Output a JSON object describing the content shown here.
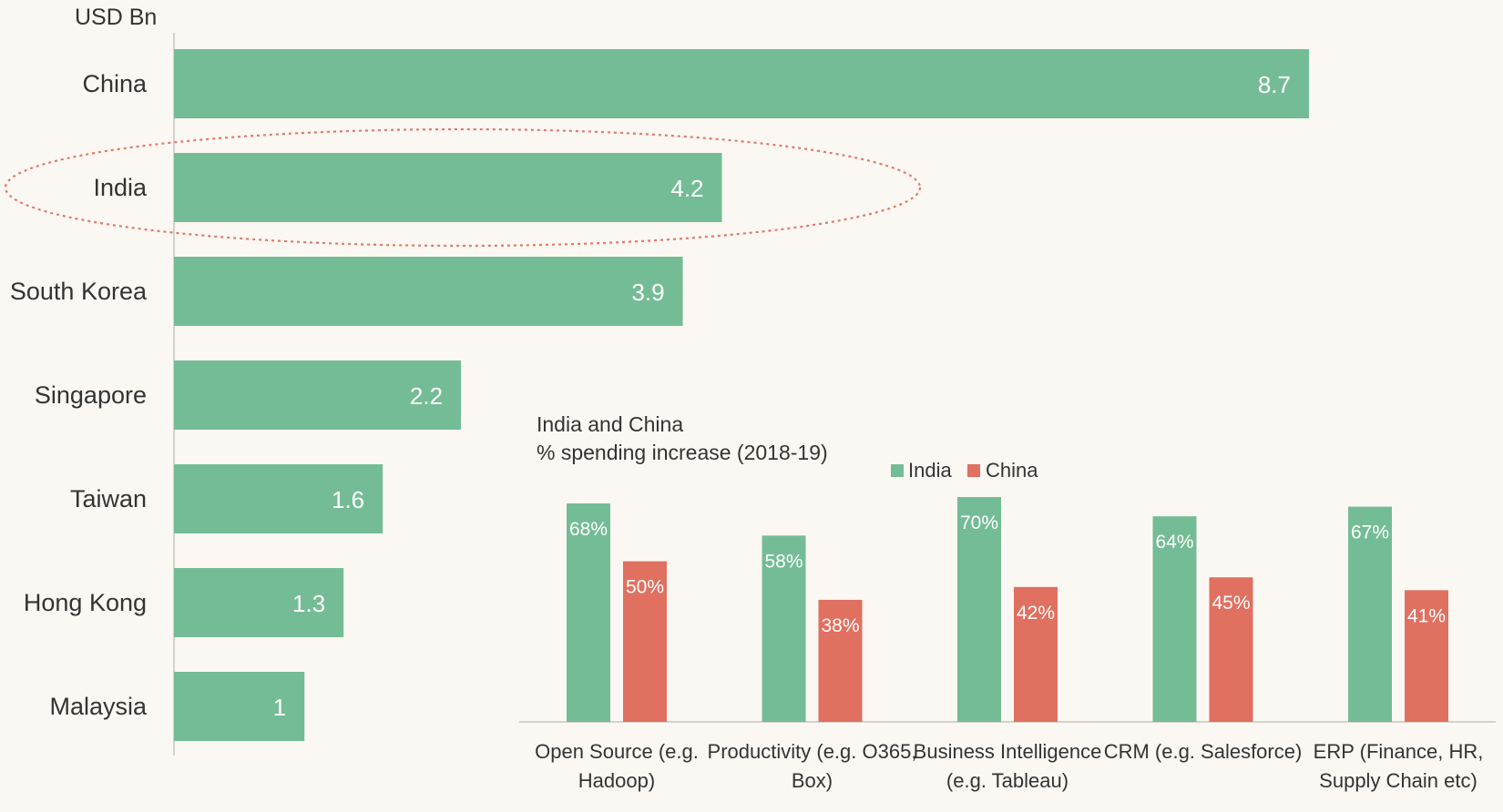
{
  "chart_data": [
    {
      "type": "bar",
      "orientation": "horizontal",
      "unit_label": "USD Bn",
      "categories": [
        "China",
        "India",
        "South Korea",
        "Singapore",
        "Taiwan",
        "Hong Kong",
        "Malaysia"
      ],
      "values": [
        8.7,
        4.2,
        3.9,
        2.2,
        1.6,
        1.3,
        1
      ],
      "value_labels": [
        "8.7",
        "4.2",
        "3.9",
        "2.2",
        "1.6",
        "1.3",
        "1"
      ],
      "highlighted_category": "India",
      "xlim": [
        0,
        8.7
      ],
      "grid": false,
      "color": "#74bc95",
      "highlight_color": "#e4786a"
    },
    {
      "type": "bar",
      "title_lines": [
        "India and China",
        "% spending increase (2018-19)"
      ],
      "legend_position": "top-center",
      "categories": [
        [
          "Open Source (e.g.",
          "Hadoop)"
        ],
        [
          "Productivity (e.g. O365,",
          "Box)"
        ],
        [
          "Business Intelligence",
          "(e.g. Tableau)"
        ],
        [
          "CRM (e.g. Salesforce)"
        ],
        [
          "ERP (Finance, HR,",
          "Supply Chain etc)"
        ]
      ],
      "series": [
        {
          "name": "India",
          "color": "#74bc95",
          "values": [
            68,
            58,
            70,
            64,
            67
          ],
          "labels": [
            "68%",
            "58%",
            "70%",
            "64%",
            "67%"
          ]
        },
        {
          "name": "China",
          "color": "#e07060",
          "values": [
            50,
            38,
            42,
            45,
            41
          ],
          "labels": [
            "50%",
            "38%",
            "42%",
            "45%",
            "41%"
          ]
        }
      ],
      "ylim": [
        0,
        70
      ],
      "grid": false
    }
  ]
}
